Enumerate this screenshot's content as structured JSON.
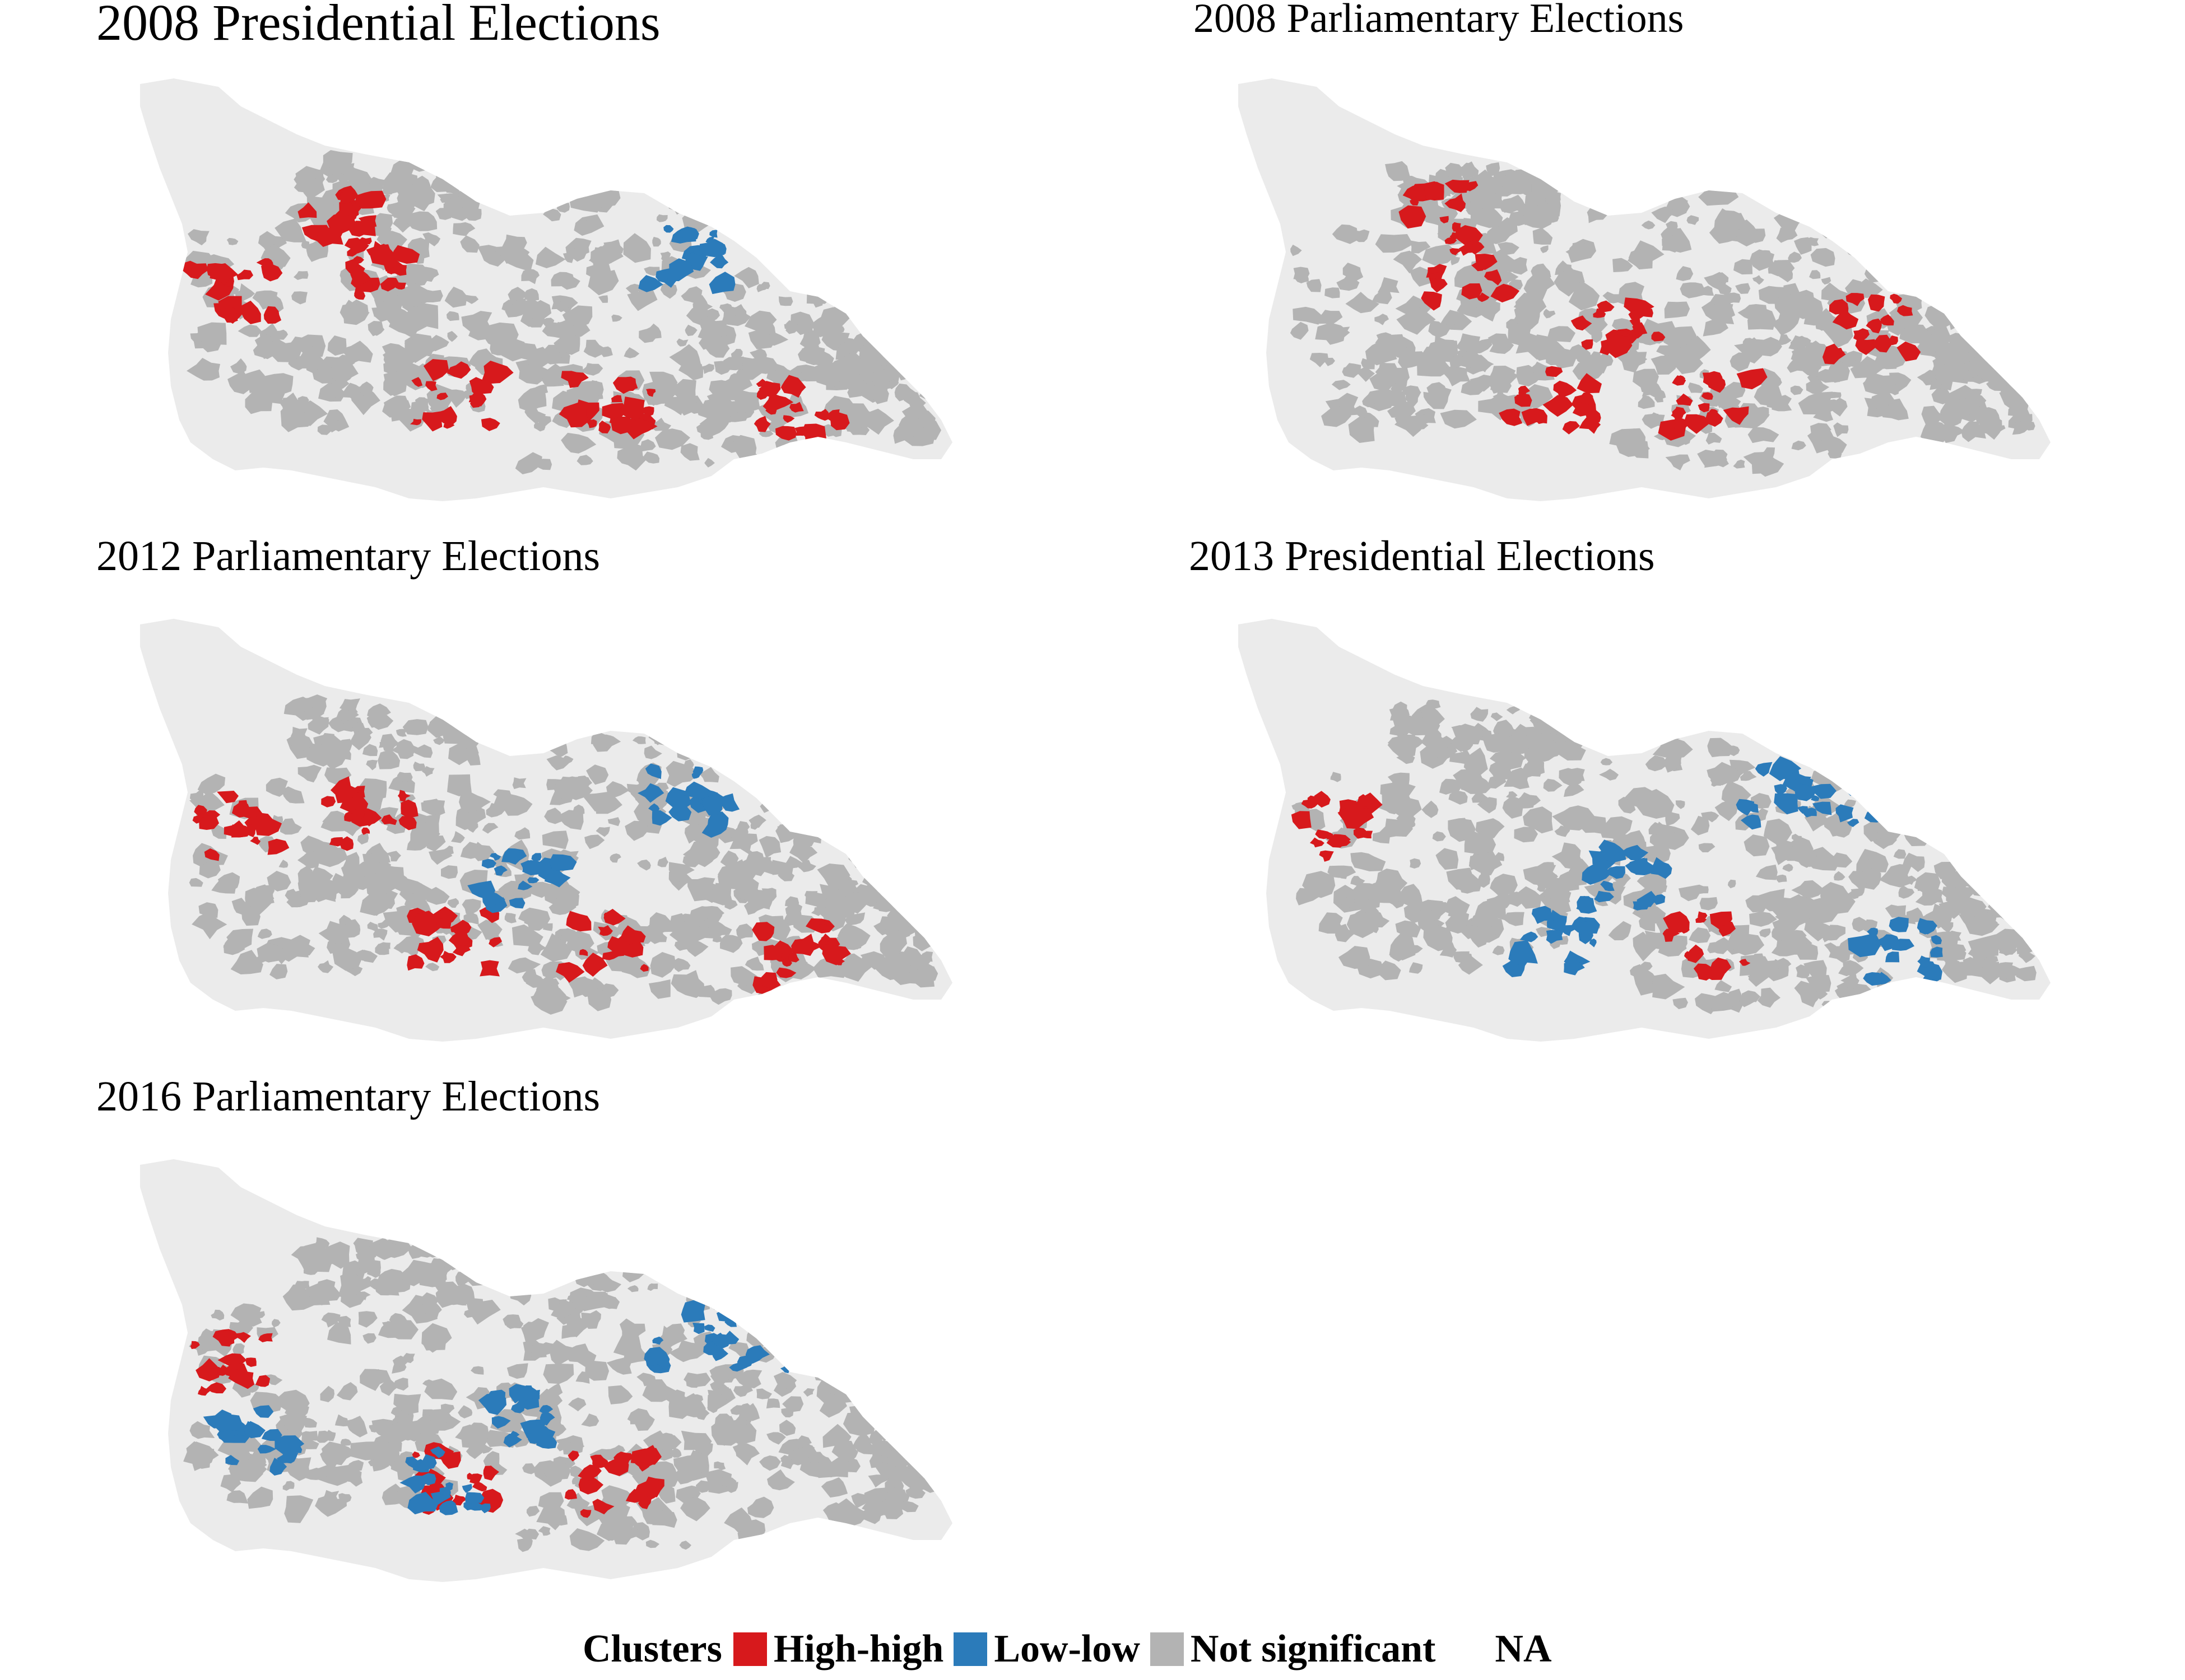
{
  "panels": [
    {
      "title": "2008 Presidential Elections",
      "clusters": [
        {
          "cluster": "High-high",
          "region": "northwest highlands"
        },
        {
          "cluster": "High-high",
          "region": "west"
        },
        {
          "cluster": "High-high",
          "region": "west-central"
        },
        {
          "cluster": "High-high",
          "region": "south-central"
        },
        {
          "cluster": "High-high",
          "region": "south"
        },
        {
          "cluster": "High-high",
          "region": "southeast"
        },
        {
          "cluster": "Low-low",
          "region": "central-north"
        }
      ]
    },
    {
      "title": "2008 Parliamentary Elections",
      "clusters": [
        {
          "cluster": "High-high",
          "region": "northwest highlands"
        },
        {
          "cluster": "High-high",
          "region": "west-central"
        },
        {
          "cluster": "High-high",
          "region": "central"
        },
        {
          "cluster": "High-high",
          "region": "south-central"
        },
        {
          "cluster": "High-high",
          "region": "south"
        },
        {
          "cluster": "High-high",
          "region": "east-central"
        }
      ]
    },
    {
      "title": "2012 Parliamentary Elections",
      "clusters": [
        {
          "cluster": "High-high",
          "region": "west"
        },
        {
          "cluster": "High-high",
          "region": "west-central"
        },
        {
          "cluster": "High-high",
          "region": "south-central"
        },
        {
          "cluster": "High-high",
          "region": "south"
        },
        {
          "cluster": "High-high",
          "region": "southeast"
        },
        {
          "cluster": "Low-low",
          "region": "central"
        },
        {
          "cluster": "Low-low",
          "region": "central-north"
        }
      ]
    },
    {
      "title": "2013 Presidential Elections",
      "clusters": [
        {
          "cluster": "High-high",
          "region": "west"
        },
        {
          "cluster": "High-high",
          "region": "south"
        },
        {
          "cluster": "Low-low",
          "region": "central-north"
        },
        {
          "cluster": "Low-low",
          "region": "northeast"
        },
        {
          "cluster": "Low-low",
          "region": "central"
        },
        {
          "cluster": "Low-low",
          "region": "south-central"
        },
        {
          "cluster": "Low-low",
          "region": "southeast"
        }
      ]
    },
    {
      "title": "2016 Parliamentary Elections",
      "clusters": [
        {
          "cluster": "High-high",
          "region": "west"
        },
        {
          "cluster": "High-high",
          "region": "south-central"
        },
        {
          "cluster": "High-high",
          "region": "south"
        },
        {
          "cluster": "Low-low",
          "region": "central-north"
        },
        {
          "cluster": "Low-low",
          "region": "northeast"
        },
        {
          "cluster": "Low-low",
          "region": "central"
        },
        {
          "cluster": "Low-low",
          "region": "south-central"
        },
        {
          "cluster": "Low-low",
          "region": "northwest"
        }
      ]
    }
  ],
  "legend": {
    "title": "Clusters",
    "entries": [
      {
        "label": "High-high",
        "color": "#d7191c"
      },
      {
        "label": "Low-low",
        "color": "#2b7bba"
      },
      {
        "label": "Not significant",
        "color": "#b3b3b3"
      },
      {
        "label": "NA",
        "color": "#ebebeb"
      }
    ]
  },
  "colors": {
    "base": "#ebebeb",
    "high_high": "#d7191c",
    "low_low": "#2b7bba",
    "not_significant": "#b3b3b3"
  }
}
